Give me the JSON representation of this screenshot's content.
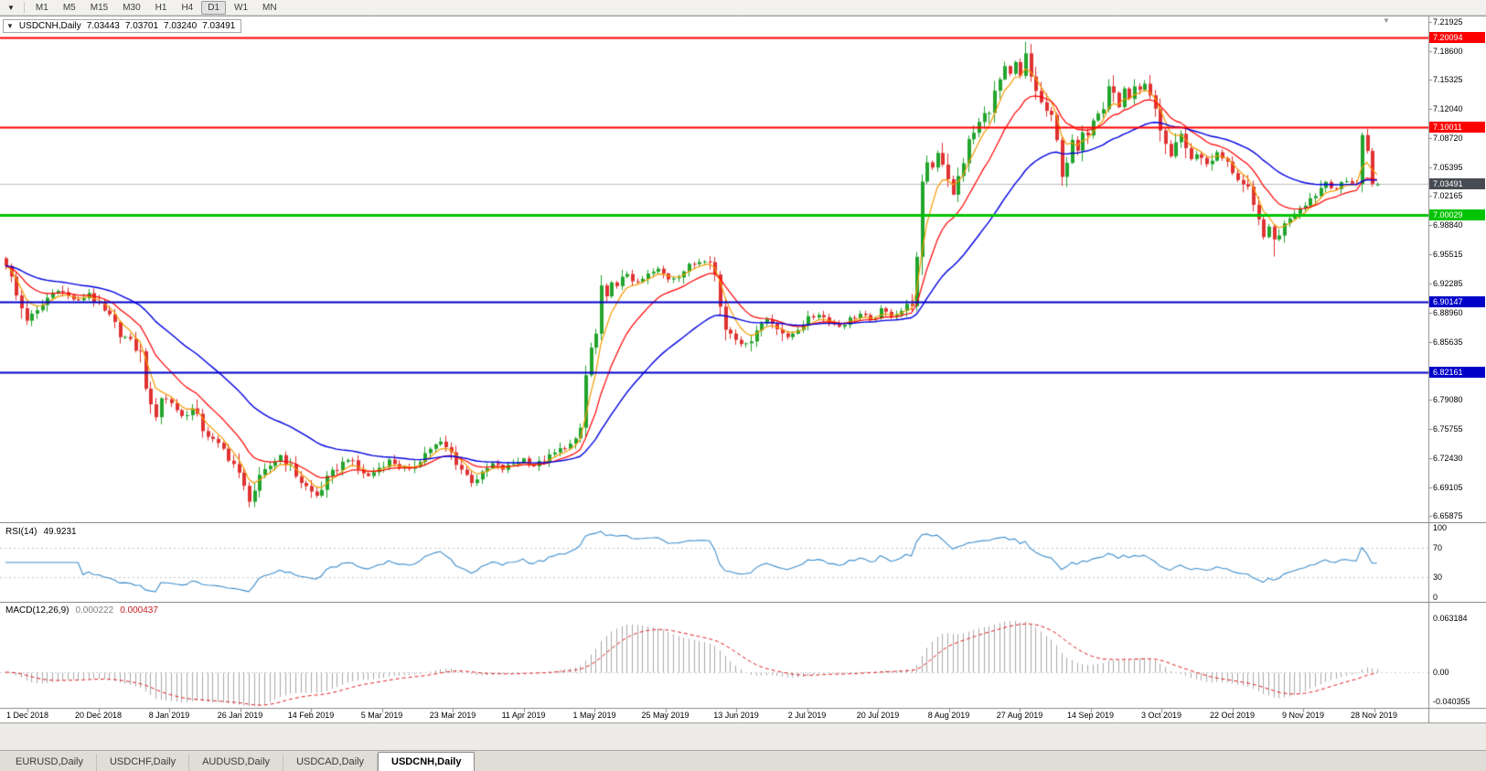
{
  "toolbar": {
    "timeframes": [
      "M1",
      "M5",
      "M15",
      "M30",
      "H1",
      "H4",
      "D1",
      "W1",
      "MN"
    ],
    "active": "D1",
    "dropdown_icon": "▼"
  },
  "chart": {
    "title": {
      "one_click_icon": "▼",
      "symbol_period": "USDCNH,Daily",
      "open": "7.03443",
      "high": "7.03701",
      "low": "7.03240",
      "close": "7.03491"
    },
    "shift_marker_icon": "▼"
  },
  "chart_data": {
    "type": "candlestick",
    "symbol": "USDCNH",
    "timeframe": "Daily",
    "bars_count": 266,
    "y_range": {
      "top": 7.226,
      "bottom": 6.652
    },
    "y_ticks": [
      "7.21925",
      "7.18600",
      "7.15325",
      "7.12040",
      "7.08720",
      "7.05395",
      "7.02165",
      "6.98840",
      "6.95515",
      "6.92285",
      "6.88960",
      "6.85635",
      "6.82310",
      "6.79080",
      "6.75755",
      "6.72430",
      "6.69105",
      "6.65875"
    ],
    "x_ticks": [
      "1 Dec 2018",
      "20 Dec 2018",
      "8 Jan 2019",
      "26 Jan 2019",
      "14 Feb 2019",
      "5 Mar 2019",
      "23 Mar 2019",
      "11 Apr 2019",
      "1 May 2019",
      "25 May 2019",
      "13 Jun 2019",
      "2 Jul 2019",
      "20 Jul 2019",
      "8 Aug 2019",
      "27 Aug 2019",
      "14 Sep 2019",
      "3 Oct 2019",
      "22 Oct 2019",
      "9 Nov 2019",
      "28 Nov 2019"
    ],
    "levels": [
      {
        "price": 7.20094,
        "label": "7.20094",
        "color": "#FF0000",
        "width": 2
      },
      {
        "price": 7.10011,
        "label": "7.10011",
        "color": "#FF0000",
        "width": 2
      },
      {
        "price": 7.00029,
        "label": "7.00029",
        "color": "#00C400",
        "width": 3
      },
      {
        "price": 6.90147,
        "label": "6.90147",
        "color": "#0000C8",
        "width": 2
      },
      {
        "price": 6.82161,
        "label": "6.82161",
        "color": "#0000C8",
        "width": 2
      }
    ],
    "current_price": {
      "value": 7.03491,
      "label": "7.03491",
      "tag_bg": "#474B52"
    },
    "colors": {
      "up": "#22A42C",
      "down": "#E03232"
    },
    "moving_averages": [
      {
        "period": 5,
        "color": "#F59B00",
        "width": 1.2
      },
      {
        "period": 13,
        "color": "#FF0000",
        "width": 1.2
      },
      {
        "period": 34,
        "color": "#0000E0",
        "width": 1.4
      }
    ],
    "close_waypoints": [
      [
        0,
        6.946
      ],
      [
        2,
        6.908
      ],
      [
        4,
        6.882
      ],
      [
        6,
        6.89
      ],
      [
        8,
        6.906
      ],
      [
        10,
        6.916
      ],
      [
        12,
        6.908
      ],
      [
        14,
        6.902
      ],
      [
        16,
        6.912
      ],
      [
        18,
        6.896
      ],
      [
        20,
        6.884
      ],
      [
        22,
        6.866
      ],
      [
        24,
        6.856
      ],
      [
        26,
        6.842
      ],
      [
        27,
        6.808
      ],
      [
        28,
        6.78
      ],
      [
        29,
        6.774
      ],
      [
        30,
        6.794
      ],
      [
        32,
        6.788
      ],
      [
        34,
        6.772
      ],
      [
        36,
        6.78
      ],
      [
        38,
        6.758
      ],
      [
        40,
        6.744
      ],
      [
        42,
        6.734
      ],
      [
        44,
        6.718
      ],
      [
        46,
        6.69
      ],
      [
        47,
        6.677
      ],
      [
        49,
        6.7
      ],
      [
        51,
        6.716
      ],
      [
        53,
        6.728
      ],
      [
        55,
        6.714
      ],
      [
        57,
        6.698
      ],
      [
        59,
        6.686
      ],
      [
        60,
        6.682
      ],
      [
        62,
        6.7
      ],
      [
        64,
        6.714
      ],
      [
        66,
        6.724
      ],
      [
        68,
        6.712
      ],
      [
        70,
        6.704
      ],
      [
        72,
        6.714
      ],
      [
        74,
        6.722
      ],
      [
        76,
        6.716
      ],
      [
        78,
        6.71
      ],
      [
        80,
        6.724
      ],
      [
        82,
        6.736
      ],
      [
        84,
        6.742
      ],
      [
        86,
        6.73
      ],
      [
        88,
        6.712
      ],
      [
        90,
        6.698
      ],
      [
        92,
        6.706
      ],
      [
        94,
        6.718
      ],
      [
        96,
        6.712
      ],
      [
        98,
        6.718
      ],
      [
        100,
        6.724
      ],
      [
        102,
        6.716
      ],
      [
        104,
        6.722
      ],
      [
        106,
        6.73
      ],
      [
        108,
        6.738
      ],
      [
        110,
        6.742
      ],
      [
        111,
        6.758
      ],
      [
        112,
        6.818
      ],
      [
        113,
        6.848
      ],
      [
        114,
        6.864
      ],
      [
        115,
        6.914
      ],
      [
        116,
        6.904
      ],
      [
        117,
        6.928
      ],
      [
        118,
        6.918
      ],
      [
        120,
        6.934
      ],
      [
        122,
        6.922
      ],
      [
        124,
        6.932
      ],
      [
        126,
        6.938
      ],
      [
        128,
        6.928
      ],
      [
        130,
        6.932
      ],
      [
        132,
        6.942
      ],
      [
        134,
        6.948
      ],
      [
        136,
        6.952
      ],
      [
        137,
        6.932
      ],
      [
        138,
        6.896
      ],
      [
        139,
        6.872
      ],
      [
        141,
        6.862
      ],
      [
        143,
        6.852
      ],
      [
        145,
        6.872
      ],
      [
        147,
        6.882
      ],
      [
        149,
        6.874
      ],
      [
        151,
        6.86
      ],
      [
        153,
        6.872
      ],
      [
        155,
        6.882
      ],
      [
        157,
        6.888
      ],
      [
        159,
        6.88
      ],
      [
        161,
        6.874
      ],
      [
        163,
        6.882
      ],
      [
        165,
        6.888
      ],
      [
        167,
        6.88
      ],
      [
        169,
        6.892
      ],
      [
        171,
        6.886
      ],
      [
        173,
        6.892
      ],
      [
        175,
        6.902
      ],
      [
        176,
        6.948
      ],
      [
        177,
        7.032
      ],
      [
        178,
        7.062
      ],
      [
        179,
        7.054
      ],
      [
        180,
        7.072
      ],
      [
        181,
        7.06
      ],
      [
        182,
        7.044
      ],
      [
        183,
        7.022
      ],
      [
        184,
        7.042
      ],
      [
        185,
        7.062
      ],
      [
        186,
        7.082
      ],
      [
        188,
        7.104
      ],
      [
        190,
        7.122
      ],
      [
        192,
        7.152
      ],
      [
        193,
        7.166
      ],
      [
        194,
        7.158
      ],
      [
        195,
        7.172
      ],
      [
        196,
        7.156
      ],
      [
        197,
        7.182
      ],
      [
        198,
        7.156
      ],
      [
        199,
        7.142
      ],
      [
        200,
        7.126
      ],
      [
        201,
        7.118
      ],
      [
        202,
        7.108
      ],
      [
        203,
        7.082
      ],
      [
        204,
        7.048
      ],
      [
        205,
        7.062
      ],
      [
        206,
        7.082
      ],
      [
        207,
        7.072
      ],
      [
        208,
        7.088
      ],
      [
        209,
        7.096
      ],
      [
        210,
        7.112
      ],
      [
        212,
        7.126
      ],
      [
        213,
        7.148
      ],
      [
        214,
        7.138
      ],
      [
        215,
        7.122
      ],
      [
        216,
        7.144
      ],
      [
        217,
        7.132
      ],
      [
        218,
        7.142
      ],
      [
        220,
        7.146
      ],
      [
        221,
        7.132
      ],
      [
        222,
        7.114
      ],
      [
        223,
        7.092
      ],
      [
        224,
        7.076
      ],
      [
        225,
        7.066
      ],
      [
        226,
        7.084
      ],
      [
        227,
        7.092
      ],
      [
        228,
        7.076
      ],
      [
        229,
        7.062
      ],
      [
        230,
        7.07
      ],
      [
        231,
        7.064
      ],
      [
        232,
        7.058
      ],
      [
        234,
        7.07
      ],
      [
        236,
        7.058
      ],
      [
        238,
        7.042
      ],
      [
        240,
        7.026
      ],
      [
        241,
        7.006
      ],
      [
        242,
        6.992
      ],
      [
        243,
        6.978
      ],
      [
        244,
        6.984
      ],
      [
        245,
        6.972
      ],
      [
        247,
        6.988
      ],
      [
        248,
        6.999
      ],
      [
        249,
        7.004
      ],
      [
        251,
        7.014
      ],
      [
        253,
        7.024
      ],
      [
        255,
        7.038
      ],
      [
        257,
        7.03
      ],
      [
        259,
        7.038
      ],
      [
        261,
        7.036
      ],
      [
        262,
        7.088
      ],
      [
        263,
        7.074
      ],
      [
        264,
        7.04
      ],
      [
        265,
        7.0349
      ]
    ],
    "wick_overrides": [
      {
        "bar": 47,
        "low": 6.669
      },
      {
        "bar": 115,
        "high": 6.932
      },
      {
        "bar": 177,
        "low": 6.932
      },
      {
        "bar": 197,
        "high": 7.1965
      },
      {
        "bar": 204,
        "low": 7.033
      },
      {
        "bar": 245,
        "low": 6.953
      },
      {
        "bar": 262,
        "high": 7.0935
      }
    ],
    "last_bar": {
      "open": 7.03443,
      "high": 7.03701,
      "low": 7.0324,
      "close": 7.03491
    },
    "indicators": {
      "rsi": {
        "label": "RSI(14)",
        "value_label": "49.9231",
        "period": 14,
        "levels": [
          100,
          70,
          30,
          0
        ],
        "color": "#3E8ECC"
      },
      "macd": {
        "label": "MACD(12,26,9)",
        "value_main": "0.000222",
        "value_signal": "0.000437",
        "fast": 12,
        "slow": 26,
        "signal": 9,
        "scale_max_label": "0.063184",
        "scale_zero_label": "0.00",
        "scale_min_label": "-0.040355",
        "hist_color": "#A9A9A9",
        "signal_color": "#E02020"
      }
    }
  },
  "tabs": {
    "items": [
      {
        "label": "EURUSD,Daily",
        "active": false
      },
      {
        "label": "USDCHF,Daily",
        "active": false
      },
      {
        "label": "AUDUSD,Daily",
        "active": false
      },
      {
        "label": "USDCAD,Daily",
        "active": false
      },
      {
        "label": "USDCNH,Daily",
        "active": true
      }
    ]
  }
}
